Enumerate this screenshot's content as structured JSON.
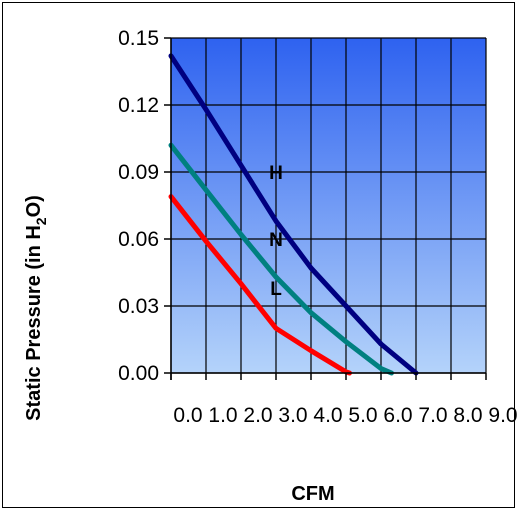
{
  "chart_data": {
    "type": "line",
    "xlabel": "CFM",
    "ylabel_main": "Static Pressure (in H",
    "ylabel_sub": "2",
    "ylabel_end": "O)",
    "xlim": [
      0,
      9
    ],
    "ylim": [
      0,
      0.15
    ],
    "x_ticks": [
      0,
      1,
      2,
      3,
      4,
      5,
      6,
      7,
      8,
      9
    ],
    "x_tick_labels": [
      "0.0",
      "1.0",
      "2.0",
      "3.0",
      "4.0",
      "5.0",
      "6.0",
      "7.0",
      "8.0",
      "9.0"
    ],
    "y_ticks": [
      0,
      0.03,
      0.06,
      0.09,
      0.12,
      0.15
    ],
    "y_tick_labels": [
      "0.00",
      "0.03",
      "0.06",
      "0.09",
      "0.12",
      "0.15"
    ],
    "grid": true,
    "background_gradient": [
      "#2e62f0",
      "#b4d3fa"
    ],
    "series": [
      {
        "name": "H",
        "color": "#000080",
        "label_at": [
          3,
          0.09
        ],
        "points": [
          [
            0,
            0.142
          ],
          [
            1,
            0.118
          ],
          [
            2,
            0.093
          ],
          [
            3,
            0.068
          ],
          [
            4,
            0.047
          ],
          [
            5,
            0.03
          ],
          [
            6,
            0.013
          ],
          [
            7,
            0
          ]
        ]
      },
      {
        "name": "N",
        "color": "#008080",
        "label_at": [
          3,
          0.06
        ],
        "points": [
          [
            0,
            0.102
          ],
          [
            1,
            0.082
          ],
          [
            2,
            0.062
          ],
          [
            3,
            0.043
          ],
          [
            4,
            0.027
          ],
          [
            5,
            0.014
          ],
          [
            6,
            0.002
          ],
          [
            6.3,
            0
          ]
        ]
      },
      {
        "name": "L",
        "color": "#ff0000",
        "label_at": [
          3,
          0.038
        ],
        "points": [
          [
            0,
            0.079
          ],
          [
            1,
            0.059
          ],
          [
            2,
            0.04
          ],
          [
            3,
            0.02
          ],
          [
            4,
            0.01
          ],
          [
            5,
            0.0005
          ],
          [
            5.1,
            0
          ]
        ]
      }
    ]
  }
}
